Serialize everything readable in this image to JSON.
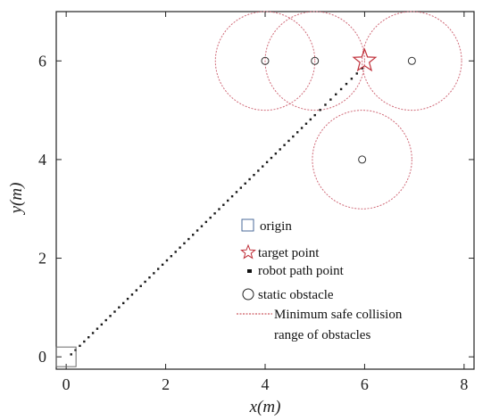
{
  "chart_data": {
    "type": "scatter",
    "xlabel": "x(m)",
    "ylabel": "y(m)",
    "xlim": [
      -0.2,
      8.2
    ],
    "ylim": [
      -0.25,
      7.0
    ],
    "x_ticks": [
      "0",
      "2",
      "4",
      "6",
      "8"
    ],
    "y_ticks": [
      "0",
      "2",
      "4",
      "6"
    ],
    "origin": {
      "x": 0,
      "y": 0
    },
    "target": {
      "x": 6,
      "y": 6
    },
    "obstacles": [
      {
        "x": 4,
        "y": 6
      },
      {
        "x": 5,
        "y": 6
      },
      {
        "x": 6.95,
        "y": 6
      },
      {
        "x": 5.95,
        "y": 4
      }
    ],
    "safe_radius": 1.0,
    "path_start": {
      "x": 0.1,
      "y": 0.05
    },
    "path_corner": {
      "x": 5.0,
      "y": 4.9
    },
    "path_end": {
      "x": 5.95,
      "y": 5.85
    },
    "path_point_count_leg1": 56,
    "path_point_count_leg2": 9,
    "legend": [
      {
        "symbol": "square",
        "label": "origin"
      },
      {
        "symbol": "star",
        "label": "target point"
      },
      {
        "symbol": "dot",
        "label": "robot path point"
      },
      {
        "symbol": "circle",
        "label": "static obstacle"
      },
      {
        "symbol": "dashed-line",
        "label": "Minimum safe collision",
        "label2": "range of obstacles"
      }
    ],
    "colors": {
      "origin": "#4a6a9a",
      "target": "#c0303a",
      "safe_range": "#d06a78",
      "path": "#1a1a1a",
      "obstacle": "#333333",
      "axes": "#222222"
    }
  }
}
